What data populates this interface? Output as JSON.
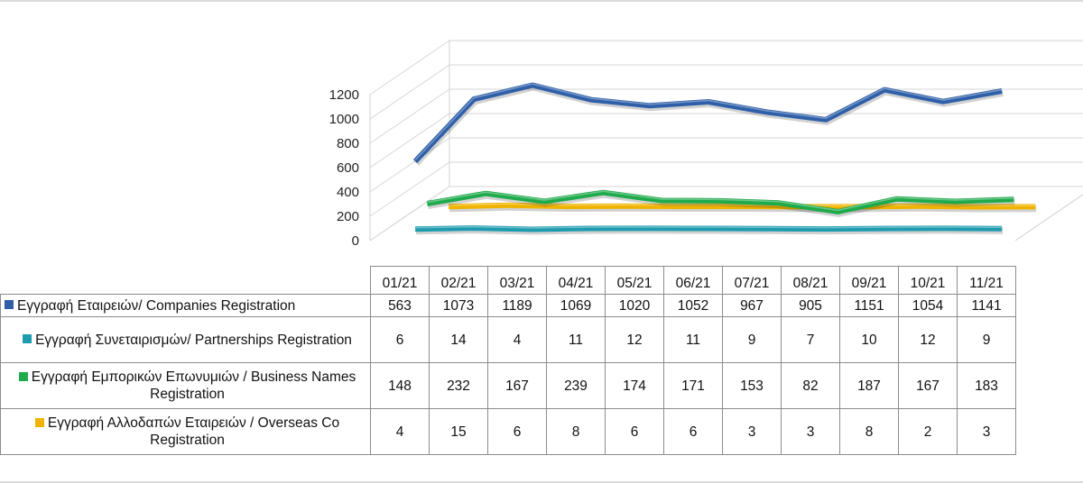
{
  "chart_data": {
    "type": "line",
    "title": "",
    "xlabel": "",
    "ylabel": "",
    "ylim": [
      0,
      1200
    ],
    "yticks": [
      0,
      200,
      400,
      600,
      800,
      1000,
      1200
    ],
    "grid": true,
    "categories": [
      "01/21",
      "02/21",
      "03/21",
      "04/21",
      "05/21",
      "06/21",
      "07/21",
      "08/21",
      "09/21",
      "10/21",
      "11/21"
    ],
    "series": [
      {
        "name": "Εγγραφή Εταιρειών/ Companies Registration",
        "color": "#2e5fa8",
        "values": [
          563,
          1073,
          1189,
          1069,
          1020,
          1052,
          967,
          905,
          1151,
          1054,
          1141
        ]
      },
      {
        "name": "Εγγραφή Συνεταιρισμών/ Partnerships Registration",
        "color": "#1f9bb0",
        "values": [
          6,
          14,
          4,
          11,
          12,
          11,
          9,
          7,
          10,
          12,
          9
        ]
      },
      {
        "name": "Εγγραφή Εμπορικών Επωνυμιών / Business Names Registration",
        "color": "#1faa4b",
        "values": [
          148,
          232,
          167,
          239,
          174,
          171,
          153,
          82,
          187,
          167,
          183
        ]
      },
      {
        "name": "Εγγραφή Αλλοδαπών Εταιρειών / Overseas Co Registration",
        "color": "#f0b400",
        "values": [
          4,
          15,
          6,
          8,
          6,
          6,
          3,
          3,
          8,
          2,
          3
        ]
      }
    ]
  }
}
